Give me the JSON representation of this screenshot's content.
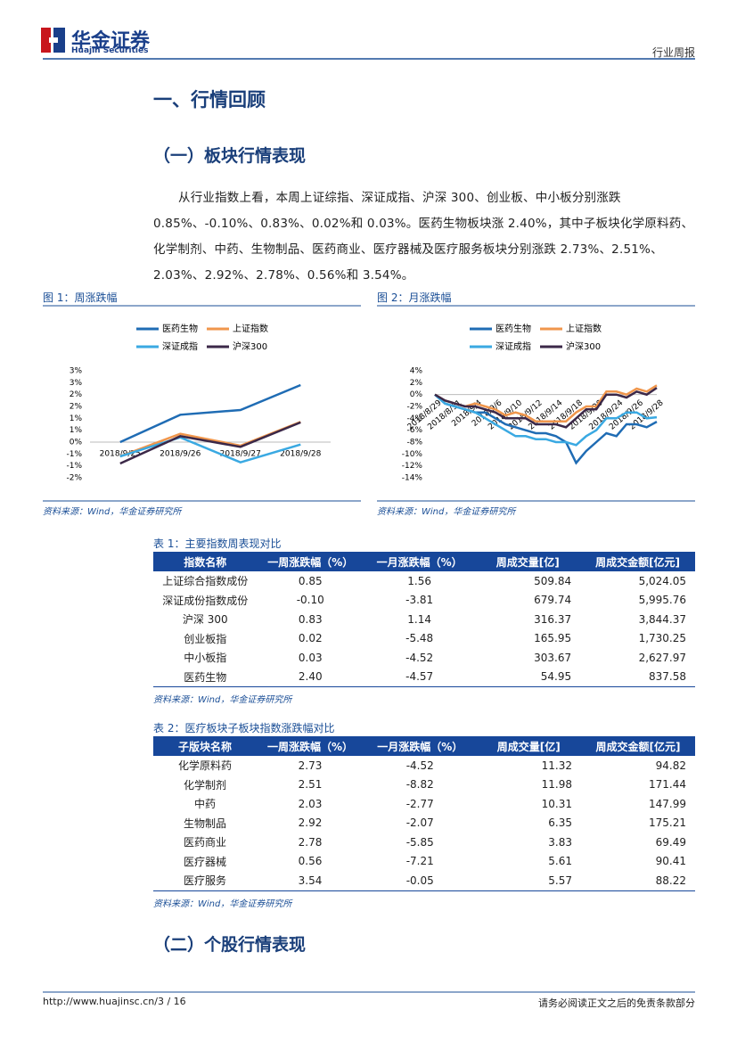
{
  "header": {
    "logo": "华金证券",
    "logo_en": "Huajin Securities",
    "report_type": "行业周报"
  },
  "section_title": "一、行情回顾",
  "subsection_1": "（一）板块行情表现",
  "paragraph": "从行业指数上看，本周上证综指、深证成指、沪深 300、创业板、中小板分别涨跌 0.85%、-0.10%、0.83%、0.02%和 0.03%。医药生物板块涨 2.40%，其中子板块化学原料药、化学制剂、中药、生物制品、医药商业、医疗器械及医疗服务板块分别涨跌 2.73%、2.51%、2.03%、2.92%、2.78%、0.56%和 3.54%。",
  "chart_data": [
    {
      "type": "line",
      "title": "图 1：周涨跌幅",
      "source": "资料来源：Wind，华金证券研究所",
      "categories": [
        "2018/9/25",
        "2018/9/26",
        "2018/9/27",
        "2018/9/28"
      ],
      "series": [
        {
          "name": "医药生物",
          "color": "#1f6cb4",
          "values": [
            0,
            1.15,
            1.35,
            2.4
          ]
        },
        {
          "name": "上证指数",
          "color": "#f0964c",
          "values": [
            -0.6,
            0.35,
            -0.15,
            0.85
          ]
        },
        {
          "name": "深证成指",
          "color": "#3aa9e2",
          "values": [
            -0.6,
            0.2,
            -0.85,
            -0.1
          ]
        },
        {
          "name": "沪深300",
          "color": "#3b2848",
          "values": [
            -0.9,
            0.25,
            -0.2,
            0.83
          ]
        }
      ],
      "ylim": [
        -1.5,
        3
      ],
      "yticks": [
        {
          "value": 3,
          "label": "3%"
        },
        {
          "value": 2.5,
          "label": "3%"
        },
        {
          "value": 2,
          "label": "2%"
        },
        {
          "value": 1.5,
          "label": "2%"
        },
        {
          "value": 1,
          "label": "1%"
        },
        {
          "value": 0.5,
          "label": "1%"
        },
        {
          "value": 0,
          "label": "0%"
        },
        {
          "value": -0.5,
          "label": "-1%"
        },
        {
          "value": -1,
          "label": "-1%"
        },
        {
          "value": -1.5,
          "label": "-2%"
        }
      ],
      "grid": false
    },
    {
      "type": "line",
      "title": "图 2：月涨跌幅",
      "source": "资料来源：Wind，华金证券研究所",
      "categories": [
        "2018/8/29",
        null,
        "2018/8/31",
        null,
        "2018/9/4",
        null,
        "2018/9/6",
        null,
        "2018/9/10",
        null,
        "2018/9/12",
        null,
        "2018/9/14",
        null,
        "2018/9/18",
        null,
        "2018/9/20",
        null,
        "2018/9/24",
        null,
        "2018/9/26",
        null,
        "2018/9/28"
      ],
      "series": [
        {
          "name": "医药生物",
          "color": "#1f6cb4",
          "values": [
            0,
            -1.5,
            -2,
            -2.5,
            -3,
            -3,
            -4,
            -5,
            -5.5,
            -6,
            -6.5,
            -6.5,
            -7,
            -8,
            -11.5,
            -9.5,
            -8,
            -6.5,
            -7,
            -5,
            -5,
            -5.5,
            -4.57
          ]
        },
        {
          "name": "上证指数",
          "color": "#f0964c",
          "values": [
            0,
            -1,
            -1.5,
            -2,
            -1.5,
            -2,
            -2.5,
            -3.5,
            -3,
            -3.5,
            -4.5,
            -4.5,
            -4.5,
            -4.5,
            -3,
            -2,
            -2,
            0.5,
            0.5,
            0,
            1,
            0.5,
            1.56
          ]
        },
        {
          "name": "深证成指",
          "color": "#3aa9e2",
          "values": [
            0,
            -1.5,
            -2,
            -2.5,
            -3,
            -4,
            -5,
            -6,
            -7,
            -7,
            -7.5,
            -7.5,
            -8,
            -8,
            -8.5,
            -7,
            -6,
            -4,
            -4,
            -3,
            -3,
            -4,
            -3.81
          ]
        },
        {
          "name": "沪深300",
          "color": "#3b2848",
          "values": [
            0,
            -1,
            -1.5,
            -2,
            -2,
            -2.5,
            -3,
            -4,
            -4,
            -4,
            -5,
            -5,
            -5,
            -5.5,
            -4,
            -2.5,
            -2.5,
            0,
            0,
            -0.5,
            0.5,
            0,
            1.14
          ]
        }
      ],
      "ylim": [
        -14,
        4
      ],
      "yticks": [
        {
          "value": 4,
          "label": "4%"
        },
        {
          "value": 2,
          "label": "2%"
        },
        {
          "value": 0,
          "label": "0%"
        },
        {
          "value": -2,
          "label": "-2%"
        },
        {
          "value": -4,
          "label": "-4%"
        },
        {
          "value": -6,
          "label": "-6%"
        },
        {
          "value": -8,
          "label": "-8%"
        },
        {
          "value": -10,
          "label": "-10%"
        },
        {
          "value": -12,
          "label": "-12%"
        },
        {
          "value": -14,
          "label": "-14%"
        }
      ],
      "grid": false
    }
  ],
  "tables": [
    {
      "caption": "表 1：主要指数周表现对比",
      "source": "资料来源：Wind，华金证券研究所",
      "header": [
        "指数名称",
        "一周涨跌幅（%）",
        "一月涨跌幅（%）",
        "周成交量[亿]",
        "周成交金额[亿元]"
      ],
      "rows": [
        [
          "上证综合指数成份",
          "0.85",
          "1.56",
          "509.84",
          "5,024.05"
        ],
        [
          "深证成份指数成份",
          "-0.10",
          "-3.81",
          "679.74",
          "5,995.76"
        ],
        [
          "沪深 300",
          "0.83",
          "1.14",
          "316.37",
          "3,844.37"
        ],
        [
          "创业板指",
          "0.02",
          "-5.48",
          "165.95",
          "1,730.25"
        ],
        [
          "中小板指",
          "0.03",
          "-4.52",
          "303.67",
          "2,627.97"
        ],
        [
          "医药生物",
          "2.40",
          "-4.57",
          "54.95",
          "837.58"
        ]
      ]
    },
    {
      "caption": "表 2：医疗板块子板块指数涨跌幅对比",
      "source": "资料来源：Wind，华金证券研究所",
      "header": [
        "子版块名称",
        "一周涨跌幅（%）",
        "一月涨跌幅（%）",
        "周成交量[亿]",
        "周成交金额[亿元]"
      ],
      "rows": [
        [
          "化学原料药",
          "2.73",
          "-4.52",
          "11.32",
          "94.82"
        ],
        [
          "化学制剂",
          "2.51",
          "-8.82",
          "11.98",
          "171.44"
        ],
        [
          "中药",
          "2.03",
          "-2.77",
          "10.31",
          "147.99"
        ],
        [
          "生物制品",
          "2.92",
          "-2.07",
          "6.35",
          "175.21"
        ],
        [
          "医药商业",
          "2.78",
          "-5.85",
          "3.83",
          "69.49"
        ],
        [
          "医疗器械",
          "0.56",
          "-7.21",
          "5.61",
          "90.41"
        ],
        [
          "医疗服务",
          "3.54",
          "-0.05",
          "5.57",
          "88.22"
        ]
      ]
    }
  ],
  "subsection_2": "（二）个股行情表现",
  "footer": {
    "url": "http://www.huajinsc.cn/3 / 16",
    "disclaimer": "请务必阅读正文之后的免责条款部分"
  }
}
